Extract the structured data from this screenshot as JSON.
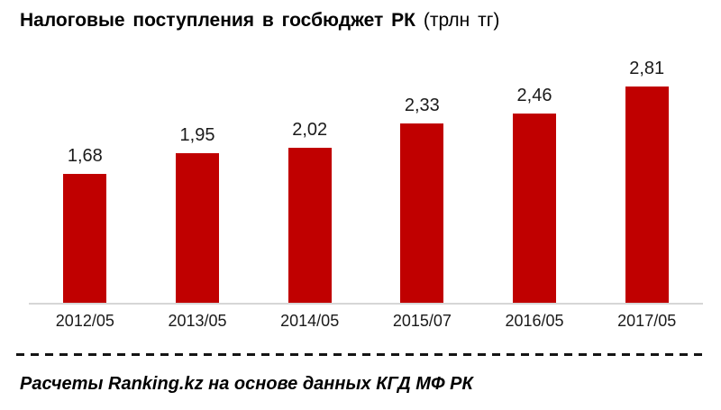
{
  "title": {
    "main": "Налоговые поступления в госбюджет РК",
    "unit": "(трлн тг)"
  },
  "chart_data": {
    "type": "bar",
    "title": "Налоговые поступления в госбюджет РК (трлн тг)",
    "categories": [
      "2012/05",
      "2013/05",
      "2014/05",
      "2015/07",
      "2016/05",
      "2017/05"
    ],
    "values": [
      1.68,
      1.95,
      2.02,
      2.33,
      2.46,
      2.81
    ],
    "value_labels": [
      "1,68",
      "1,95",
      "2,02",
      "2,33",
      "2,46",
      "2,81"
    ],
    "xlabel": "",
    "ylabel": "",
    "ylim": [
      0,
      3
    ],
    "grid": false,
    "legend_position": "none",
    "bar_color": "#c00000",
    "axis_line_color": "#d6d6d6"
  },
  "footer": {
    "source_note": "Расчеты Ranking.kz на основе данных КГД МФ РК"
  }
}
